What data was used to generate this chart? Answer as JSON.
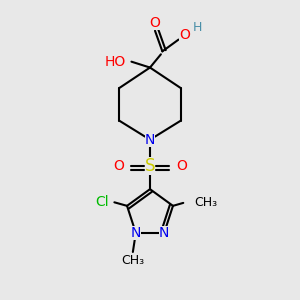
{
  "bg_color": "#e8e8e8",
  "bond_color": "#000000",
  "bond_width": 1.5,
  "atom_colors": {
    "C": "#000000",
    "N": "#0000ee",
    "O": "#ff0000",
    "S": "#cccc00",
    "Cl": "#00bb00",
    "H": "#4a8fa8"
  },
  "font_size": 10,
  "fig_size": [
    3.0,
    3.0
  ],
  "dpi": 100,
  "xlim": [
    0,
    10
  ],
  "ylim": [
    0,
    10
  ]
}
